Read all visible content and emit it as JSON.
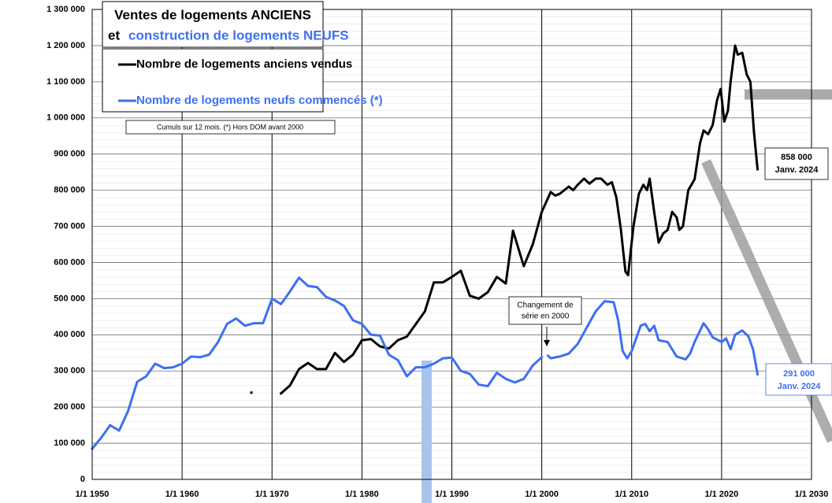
{
  "chart_data": {
    "type": "line",
    "title": "Ventes de logements ANCIENS",
    "subtitle_prefix": "et",
    "subtitle": "construction de logements NEUFS",
    "note": "Cumuls sur 12 mois.  (*) Hors DOM avant 2000",
    "annotations": [
      {
        "text": "Changement de",
        "text2": "série en 2000"
      },
      {
        "text": "858 000",
        "text2": "Janv. 2024"
      },
      {
        "text": "291 000",
        "text2": "Janv. 2024"
      }
    ],
    "xlim": [
      1950,
      2030
    ],
    "xticks": [
      {
        "value": 1950,
        "label": "1/1 1950"
      },
      {
        "value": 1960,
        "label": "1/1 1960"
      },
      {
        "value": 1970,
        "label": "1/1 1970"
      },
      {
        "value": 1980,
        "label": "1/1 1980"
      },
      {
        "value": 1990,
        "label": "1/1 1990"
      },
      {
        "value": 2000,
        "label": "1/1 2000"
      },
      {
        "value": 2010,
        "label": "1/1 2010"
      },
      {
        "value": 2020,
        "label": "1/1 2020"
      },
      {
        "value": 2030,
        "label": "1/1 2030"
      }
    ],
    "ylim": [
      0,
      1300000
    ],
    "yticks": [
      0,
      {
        "value": 100000,
        "label": "100 000"
      },
      {
        "value": 200000,
        "label": "200 000"
      },
      {
        "value": 300000,
        "label": "300 000"
      },
      {
        "value": 400000,
        "label": "400 000"
      },
      {
        "value": 500000,
        "label": "500 000"
      },
      {
        "value": 600000,
        "label": "600 000"
      },
      {
        "value": 700000,
        "label": "700 000"
      },
      {
        "value": 800000,
        "label": "800 000"
      },
      {
        "value": 900000,
        "label": "900 000"
      },
      {
        "value": 1000000,
        "label": "1 000 000"
      },
      {
        "value": 1100000,
        "label": "1 100 000"
      },
      {
        "value": 1200000,
        "label": "1 200 000"
      },
      {
        "value": 1300000,
        "label": "1 300 000"
      }
    ],
    "grid": true,
    "series": [
      {
        "name": "Nombre de logements anciens vendus",
        "color": "#000000",
        "x": [
          1967.7,
          null,
          1971,
          1972,
          1973,
          1974,
          1975,
          1976,
          1977,
          1978,
          1979,
          1980,
          1981,
          1982,
          1983,
          1984,
          1985,
          1986,
          1987,
          1988,
          1989,
          1990,
          1991,
          1992,
          1993,
          1994,
          1995,
          1996,
          1996.8,
          1998,
          1999,
          2000,
          2001,
          2001.5,
          2002,
          2003,
          2003.5,
          2004,
          2004.7,
          2005.3,
          2006,
          2006.6,
          2007.3,
          2007.8,
          2008.3,
          2008.8,
          2009.3,
          2009.6,
          2010.2,
          2010.8,
          2011.3,
          2011.7,
          2012,
          2012.5,
          2013,
          2013.5,
          2014,
          2014.5,
          2015,
          2015.3,
          2015.7,
          2016.3,
          2017,
          2017.6,
          2018,
          2018.5,
          2019,
          2019.5,
          2019.9,
          2020.3,
          2020.7,
          2021,
          2021.5,
          2021.8,
          2022.3,
          2022.8,
          2023.2,
          2023.6,
          2024
        ],
        "values": [
          240000,
          null,
          238000,
          260000,
          305000,
          322000,
          305000,
          305000,
          350000,
          325000,
          345000,
          385000,
          388000,
          368000,
          362000,
          385000,
          395000,
          430000,
          465000,
          545000,
          545000,
          560000,
          577000,
          508000,
          500000,
          518000,
          560000,
          542000,
          688000,
          590000,
          650000,
          740000,
          795000,
          785000,
          790000,
          810000,
          800000,
          815000,
          832000,
          818000,
          832000,
          832000,
          815000,
          822000,
          780000,
          690000,
          575000,
          565000,
          700000,
          790000,
          815000,
          800000,
          832000,
          740000,
          655000,
          680000,
          690000,
          740000,
          725000,
          690000,
          700000,
          800000,
          830000,
          930000,
          965000,
          955000,
          980000,
          1050000,
          1080000,
          990000,
          1020000,
          1100000,
          1200000,
          1175000,
          1180000,
          1120000,
          1100000,
          960000,
          858000
        ]
      },
      {
        "name": "Nombre de logements neufs commencés (*)",
        "color": "#3d6ff2",
        "x": [
          1950,
          1951,
          1952,
          1953,
          1954,
          1955,
          1956,
          1957,
          1958,
          1959,
          1960,
          1961,
          1962,
          1963,
          1964,
          1965,
          1966,
          1967,
          1968,
          1969,
          1970,
          1971,
          1972,
          1973,
          1974,
          1975,
          1976,
          1977,
          1978,
          1979,
          1980,
          1981,
          1982,
          1983,
          1984,
          1985,
          1986,
          1987,
          1988,
          1989,
          1990,
          1991,
          1992,
          1993,
          1994,
          1995,
          1996,
          1997,
          1998,
          1999,
          2000,
          null,
          2000.7,
          2001,
          2002,
          2003,
          2004,
          2005,
          2006,
          2007,
          2008,
          2008.5,
          2009,
          2009.5,
          2010,
          2011,
          2011.5,
          2012,
          2012.5,
          2013,
          2014,
          2015,
          2016,
          2016.5,
          2017,
          2018,
          2018.5,
          2019,
          2020,
          2020.5,
          2021,
          2021.5,
          2022.3,
          2023,
          2023.5,
          2024
        ],
        "values": [
          85000,
          115000,
          150000,
          135000,
          190000,
          270000,
          285000,
          320000,
          308000,
          310000,
          320000,
          340000,
          338000,
          345000,
          380000,
          430000,
          445000,
          425000,
          432000,
          432000,
          500000,
          485000,
          520000,
          558000,
          535000,
          532000,
          505000,
          495000,
          480000,
          440000,
          430000,
          400000,
          398000,
          345000,
          330000,
          285000,
          310000,
          310000,
          320000,
          335000,
          337000,
          300000,
          292000,
          262000,
          258000,
          295000,
          278000,
          268000,
          278000,
          315000,
          338000,
          null,
          342000,
          335000,
          340000,
          348000,
          375000,
          420000,
          465000,
          493000,
          490000,
          440000,
          355000,
          335000,
          355000,
          425000,
          430000,
          410000,
          425000,
          385000,
          380000,
          340000,
          332000,
          348000,
          380000,
          432000,
          415000,
          393000,
          380000,
          390000,
          360000,
          400000,
          412000,
          395000,
          360000,
          291000
        ]
      }
    ]
  }
}
